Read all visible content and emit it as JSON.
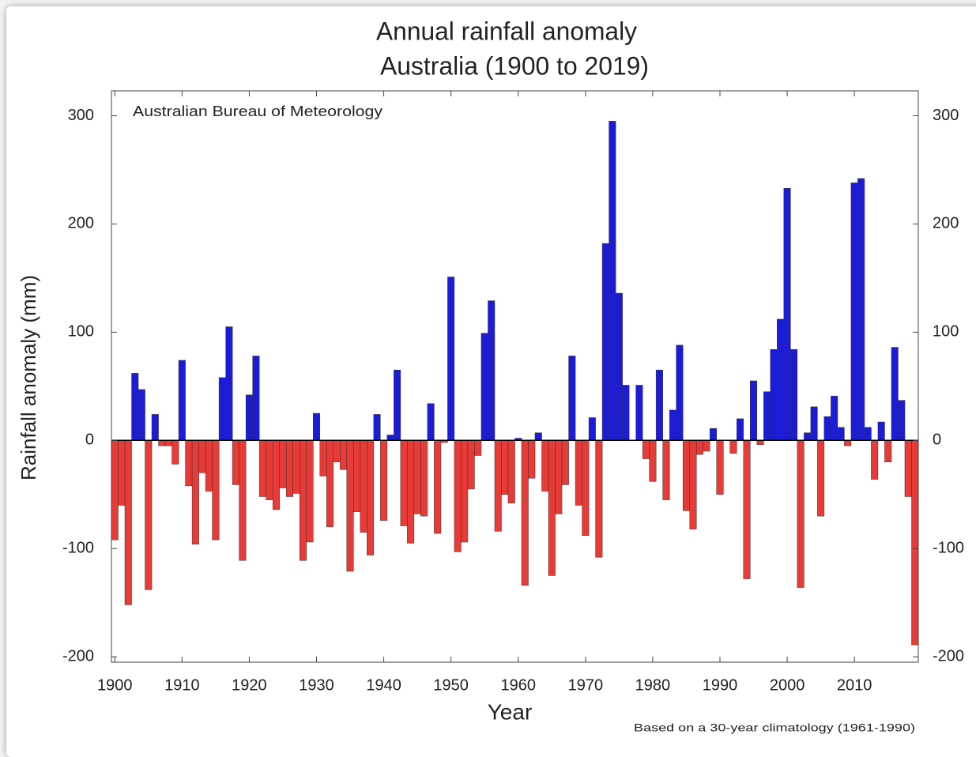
{
  "chart_data": {
    "type": "bar",
    "title": "Annual rainfall anomaly",
    "subtitle": "Australia (1900 to 2019)",
    "annotation": "Australian Bureau of Meteorology",
    "note": "Based on a 30-year climatology (1961-1990)",
    "xlabel": "Year",
    "ylabel": "Rainfall anomaly (mm)",
    "x": [
      1900,
      1901,
      1902,
      1903,
      1904,
      1905,
      1906,
      1907,
      1908,
      1909,
      1910,
      1911,
      1912,
      1913,
      1914,
      1915,
      1916,
      1917,
      1918,
      1919,
      1920,
      1921,
      1922,
      1923,
      1924,
      1925,
      1926,
      1927,
      1928,
      1929,
      1930,
      1931,
      1932,
      1933,
      1934,
      1935,
      1936,
      1937,
      1938,
      1939,
      1940,
      1941,
      1942,
      1943,
      1944,
      1945,
      1946,
      1947,
      1948,
      1949,
      1950,
      1951,
      1952,
      1953,
      1954,
      1955,
      1956,
      1957,
      1958,
      1959,
      1960,
      1961,
      1962,
      1963,
      1964,
      1965,
      1966,
      1967,
      1968,
      1969,
      1970,
      1971,
      1972,
      1973,
      1974,
      1975,
      1976,
      1977,
      1978,
      1979,
      1980,
      1981,
      1982,
      1983,
      1984,
      1985,
      1986,
      1987,
      1988,
      1989,
      1990,
      1991,
      1992,
      1993,
      1994,
      1995,
      1996,
      1997,
      1998,
      1999,
      2000,
      2001,
      2002,
      2003,
      2004,
      2005,
      2006,
      2007,
      2008,
      2009,
      2010,
      2011,
      2012,
      2013,
      2014,
      2015,
      2016,
      2017,
      2018,
      2019
    ],
    "values": [
      -92,
      -60,
      -152,
      62,
      47,
      -138,
      24,
      -5,
      -5,
      -22,
      74,
      -42,
      -96,
      -30,
      -47,
      -92,
      58,
      105,
      -41,
      -111,
      42,
      78,
      -52,
      -55,
      -64,
      -44,
      -52,
      -49,
      -111,
      -94,
      25,
      -33,
      -80,
      -20,
      -27,
      -121,
      -66,
      -85,
      -106,
      24,
      -74,
      5,
      65,
      -79,
      -95,
      -68,
      -70,
      34,
      -86,
      -2,
      151,
      -103,
      -94,
      -45,
      -14,
      99,
      129,
      -84,
      -50,
      -58,
      2,
      -134,
      -35,
      7,
      -47,
      -125,
      -68,
      -41,
      78,
      -60,
      -88,
      21,
      -108,
      182,
      295,
      136,
      51,
      0,
      51,
      -17,
      -38,
      65,
      -55,
      28,
      88,
      -65,
      -82,
      -13,
      -10,
      11,
      -50,
      0,
      -12,
      20,
      -128,
      55,
      -4,
      45,
      84,
      112,
      233,
      84,
      -136,
      7,
      31,
      -70,
      22,
      41,
      12,
      -5,
      238,
      242,
      12,
      -36,
      17,
      -20,
      86,
      37,
      -52,
      -189
    ],
    "positive_color": "#1c1cd8",
    "negative_color": "#e83a36",
    "xlim": [
      1899.5,
      2019.5
    ],
    "xticks": [
      1900,
      1910,
      1920,
      1930,
      1940,
      1950,
      1960,
      1970,
      1980,
      1990,
      2000,
      2010
    ],
    "ylim": [
      -205,
      323
    ],
    "yticks": [
      -200,
      -100,
      0,
      100,
      200,
      300
    ],
    "y2lim": [
      -205,
      323
    ],
    "y2ticks": [
      -200,
      -100,
      0,
      100,
      200,
      300
    ]
  }
}
